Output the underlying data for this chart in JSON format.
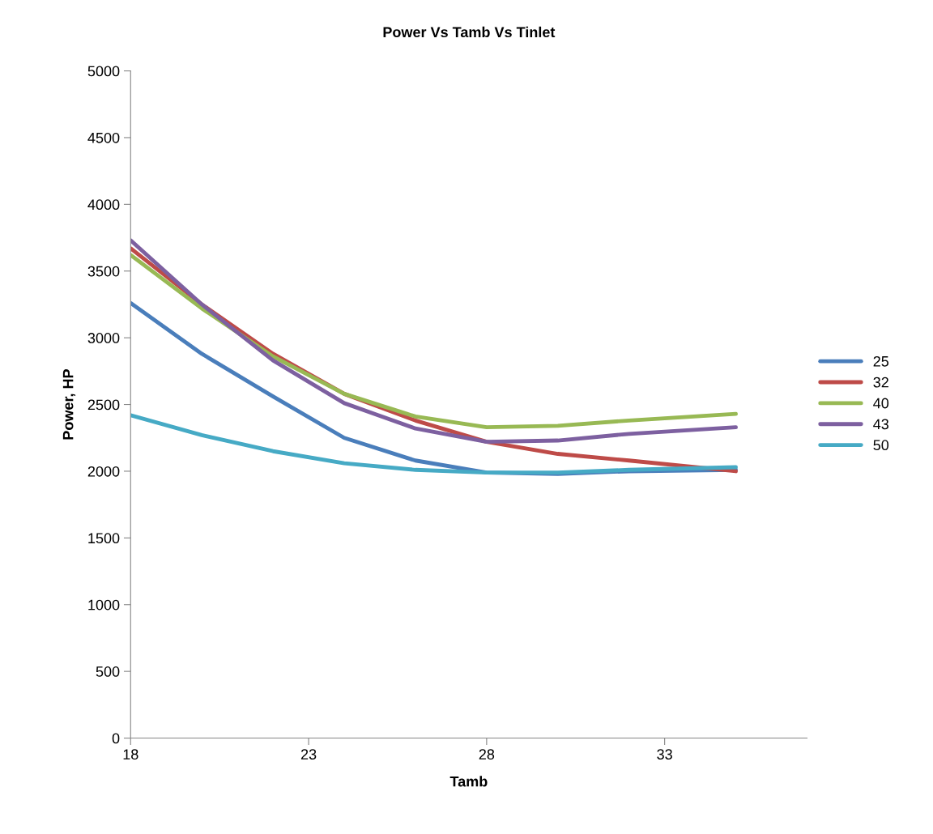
{
  "chart_data": {
    "type": "line",
    "title": "Power Vs Tamb Vs Tinlet",
    "xlabel": "Tamb",
    "ylabel": "Power, HP",
    "x": [
      18,
      20,
      22,
      24,
      26,
      28,
      30,
      32,
      35
    ],
    "xlim": [
      18,
      37
    ],
    "xticks": [
      18,
      23,
      28,
      33
    ],
    "ylim": [
      0,
      5000
    ],
    "yticks": [
      0,
      500,
      1000,
      1500,
      2000,
      2500,
      3000,
      3500,
      4000,
      4500,
      5000
    ],
    "grid": false,
    "legend": "right",
    "marker": "none",
    "line_style": "solid",
    "series": [
      {
        "name": "25",
        "color": "#4a7ebb",
        "values": [
          3260,
          2880,
          2560,
          2250,
          2080,
          1990,
          1980,
          2000,
          2010
        ]
      },
      {
        "name": "32",
        "color": "#be4b48",
        "values": [
          3670,
          3250,
          2880,
          2580,
          2380,
          2220,
          2130,
          2080,
          2000
        ]
      },
      {
        "name": "40",
        "color": "#98b954",
        "values": [
          3620,
          3220,
          2860,
          2580,
          2410,
          2330,
          2340,
          2380,
          2430
        ]
      },
      {
        "name": "43",
        "color": "#7d60a0",
        "values": [
          3730,
          3250,
          2830,
          2510,
          2320,
          2220,
          2230,
          2280,
          2330
        ]
      },
      {
        "name": "50",
        "color": "#46aac5",
        "values": [
          2420,
          2270,
          2150,
          2060,
          2010,
          1990,
          1990,
          2010,
          2030
        ]
      }
    ]
  }
}
